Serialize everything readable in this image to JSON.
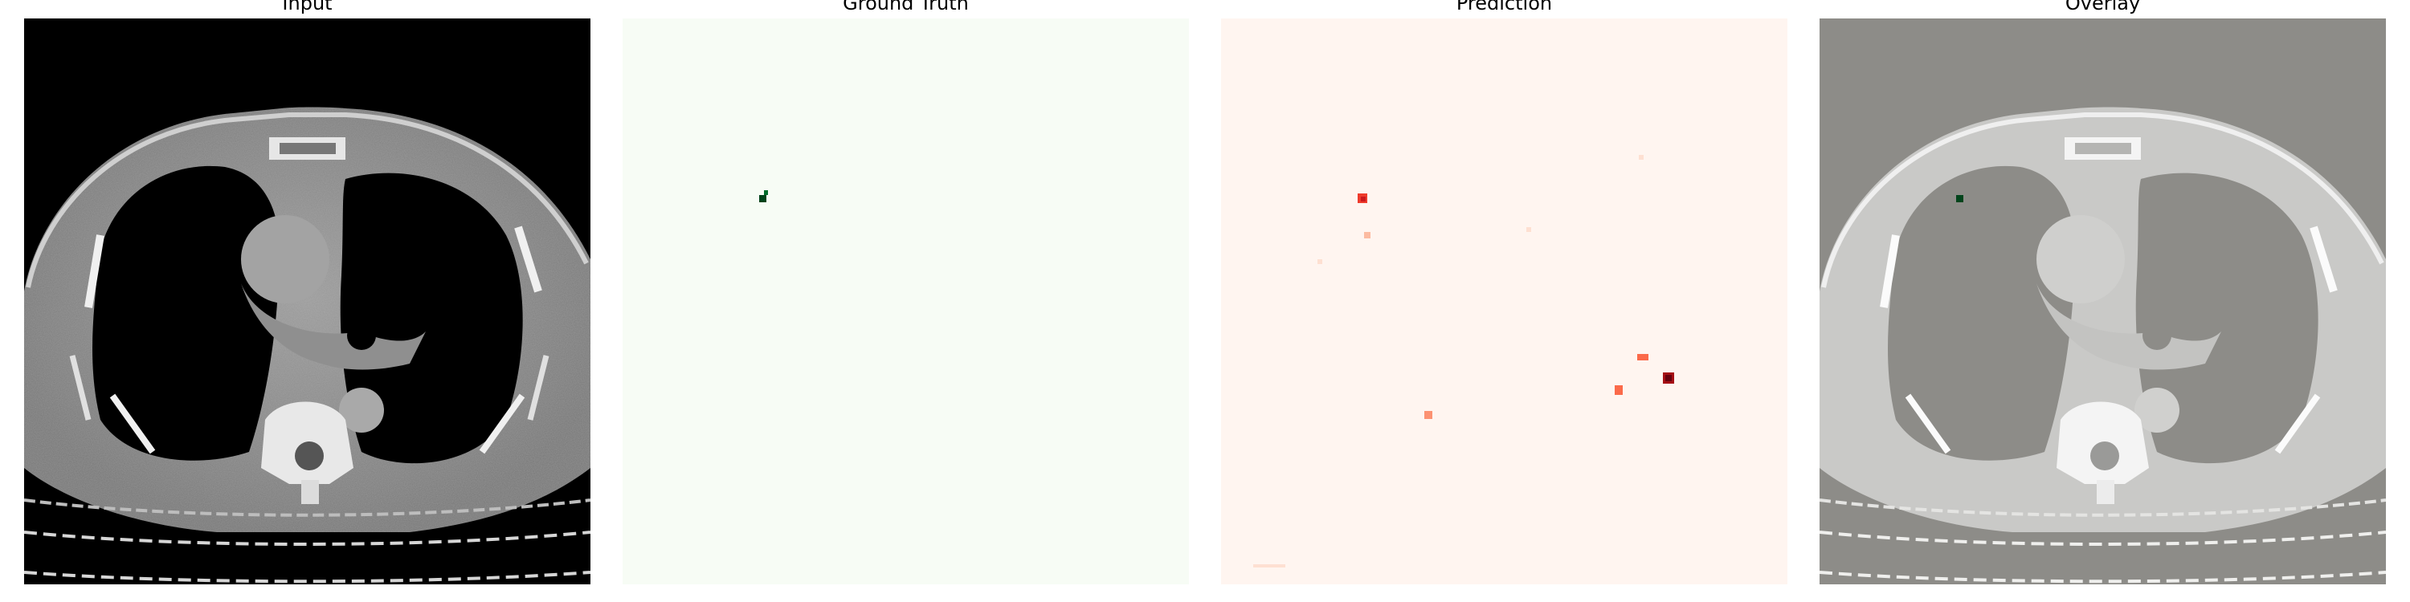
{
  "figure": {
    "panels": [
      {
        "title": "Input",
        "colormap": "gray"
      },
      {
        "title": "Ground Truth",
        "colormap": "Greens"
      },
      {
        "title": "Prediction",
        "colormap": "Reds"
      },
      {
        "title": "Overlay",
        "colormap": "gray+Greens"
      }
    ],
    "colors": {
      "ct_background": "#000000",
      "overlay_background": "#8d8c88",
      "greens_low": "#f7fcf5",
      "greens_high": "#00441b",
      "reds_low": "#fff5f0",
      "reds_high": "#67000d",
      "reds_mid": "#ef3b2c"
    }
  }
}
